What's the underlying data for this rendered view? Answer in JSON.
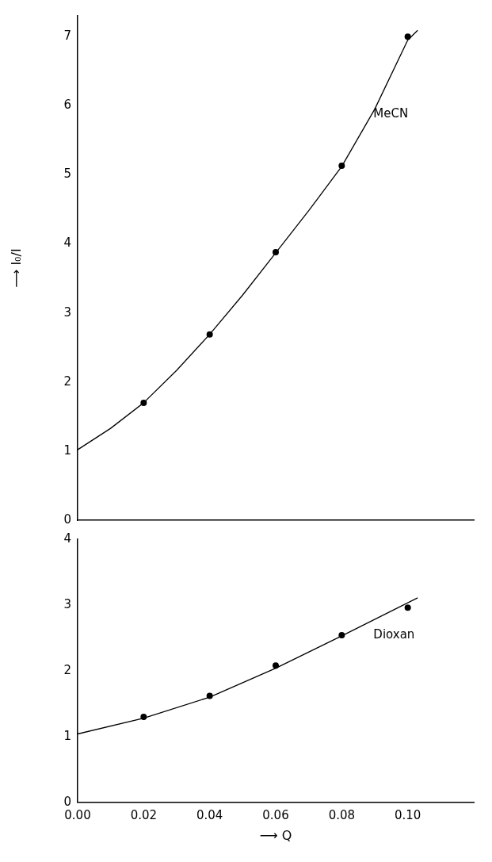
{
  "chart_data": [
    {
      "type": "scatter",
      "ylabel": "⟶ I₀/I",
      "xlim": [
        0,
        0.12
      ],
      "ylim": [
        0,
        7.3
      ],
      "yticks": [
        0,
        1,
        2,
        3,
        4,
        5,
        6,
        7
      ],
      "tick_labels": "y",
      "marker": "circle",
      "series": [
        {
          "name": "MeCN",
          "color": "#000000",
          "x": [
            0.02,
            0.04,
            0.06,
            0.08,
            0.1
          ],
          "values": [
            1.7,
            2.69,
            3.88,
            5.13,
            7.0
          ]
        },
        {
          "type": "line",
          "color": "#000000",
          "marker": "none",
          "x": [
            0,
            0.01,
            0.02,
            0.03,
            0.04,
            0.05,
            0.06,
            0.07,
            0.08,
            0.09,
            0.1,
            0.103
          ],
          "values": [
            1.02,
            1.33,
            1.7,
            2.17,
            2.69,
            3.26,
            3.87,
            4.48,
            5.12,
            5.95,
            6.95,
            7.09
          ]
        }
      ]
    },
    {
      "type": "scatter",
      "xlabel": "⟶ Q",
      "xlim": [
        0,
        0.12
      ],
      "xticks": [
        {
          "value": 0,
          "label": "0.00"
        },
        {
          "value": 0.02,
          "label": "0.02"
        },
        {
          "value": 0.04,
          "label": "0.04"
        },
        {
          "value": 0.06,
          "label": "0.06"
        },
        {
          "value": 0.08,
          "label": "0.08"
        },
        {
          "value": 0.1,
          "label": "0.10"
        }
      ],
      "ylim": [
        0,
        4
      ],
      "yticks": [
        0,
        1,
        2,
        3,
        4
      ],
      "marker": "circle",
      "series": [
        {
          "name": "Dioxan",
          "color": "#000000",
          "x": [
            0.02,
            0.04,
            0.06,
            0.08,
            0.1
          ],
          "values": [
            1.3,
            1.62,
            2.08,
            2.54,
            2.96
          ]
        },
        {
          "type": "line",
          "color": "#000000",
          "marker": "none",
          "x": [
            0,
            0.02,
            0.04,
            0.06,
            0.08,
            0.103
          ],
          "values": [
            1.04,
            1.28,
            1.6,
            2.04,
            2.53,
            3.11
          ]
        }
      ]
    }
  ]
}
